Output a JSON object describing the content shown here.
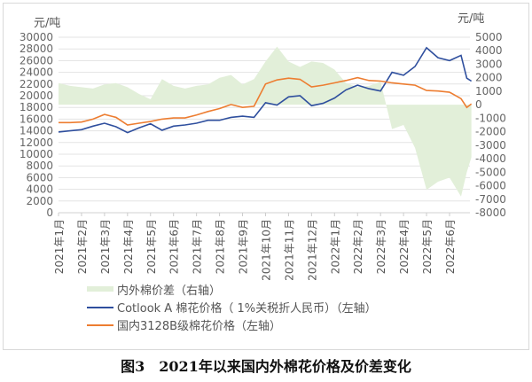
{
  "chart_data": {
    "type": "line",
    "title": "图3　2021年以来国内外棉花价格及价差变化",
    "left_unit": "元/吨",
    "right_unit": "元/吨",
    "left_ylim": [
      0,
      30000
    ],
    "right_ylim": [
      -8000,
      5000
    ],
    "left_ticks": [
      0,
      2000,
      4000,
      6000,
      8000,
      10000,
      12000,
      14000,
      16000,
      18000,
      20000,
      22000,
      24000,
      26000,
      28000,
      30000
    ],
    "right_ticks": [
      -8000,
      -7000,
      -6000,
      -5000,
      -4000,
      -3000,
      -2000,
      -1000,
      0,
      1000,
      2000,
      3000,
      4000,
      5000
    ],
    "x_ticks": [
      "2021年1月",
      "2021年2月",
      "2021年3月",
      "2021年4月",
      "2021年5月",
      "2021年6月",
      "2021年7月",
      "2021年8月",
      "2021年9月",
      "2021年10月",
      "2021年11月",
      "2021年12月",
      "2022年1月",
      "2022年2月",
      "2022年3月",
      "2022年4月",
      "2022年5月",
      "2022年6月"
    ],
    "x_months": [
      0,
      0.5,
      1,
      1.5,
      2,
      2.5,
      3,
      3.5,
      4,
      4.5,
      5,
      5.5,
      6,
      6.5,
      7,
      7.5,
      8,
      8.5,
      9,
      9.5,
      10,
      10.5,
      11,
      11.5,
      12,
      12.5,
      13,
      13.5,
      14,
      14.5,
      15,
      15.5,
      16,
      16.5,
      17,
      17.5,
      17.75,
      17.95
    ],
    "grid": true,
    "legend_position": "bottom",
    "series": [
      {
        "name": "内外棉价差（右轴）",
        "type": "area",
        "axis": "right",
        "color": "#e2efd9",
        "values": [
          1600,
          1400,
          1300,
          1200,
          1500,
          1600,
          1300,
          800,
          400,
          1900,
          1400,
          1200,
          1400,
          1500,
          2000,
          2200,
          1500,
          1900,
          3200,
          4300,
          3200,
          2800,
          3200,
          3100,
          2600,
          1600,
          1300,
          1400,
          1700,
          -1800,
          -1500,
          -3200,
          -6300,
          -5700,
          -5400,
          -6800,
          -5000,
          -3900
        ]
      },
      {
        "name": "Cotlook A 棉花价格（ 1%关税折人民币）（左轴）",
        "type": "line",
        "axis": "left",
        "color": "#2f4f9e",
        "values": [
          13800,
          14000,
          14200,
          14800,
          15300,
          14700,
          13700,
          14500,
          15200,
          14100,
          14800,
          15000,
          15300,
          15800,
          15800,
          16300,
          16500,
          16300,
          18800,
          18400,
          19800,
          20000,
          18300,
          18700,
          19600,
          21000,
          21800,
          21200,
          20800,
          24000,
          23500,
          25000,
          28200,
          26500,
          26000,
          26900,
          23000,
          22500
        ]
      },
      {
        "name": "国内3128B级棉花价格（左轴）",
        "type": "line",
        "axis": "left",
        "color": "#ed7d31",
        "values": [
          15400,
          15400,
          15500,
          16000,
          16800,
          16300,
          15000,
          15300,
          15600,
          16000,
          16200,
          16200,
          16700,
          17300,
          17800,
          18500,
          18000,
          18200,
          22000,
          22700,
          23000,
          22800,
          21500,
          21800,
          22200,
          22600,
          23100,
          22600,
          22500,
          22200,
          22000,
          21800,
          20900,
          20800,
          20600,
          19500,
          18000,
          18600
        ]
      }
    ]
  }
}
